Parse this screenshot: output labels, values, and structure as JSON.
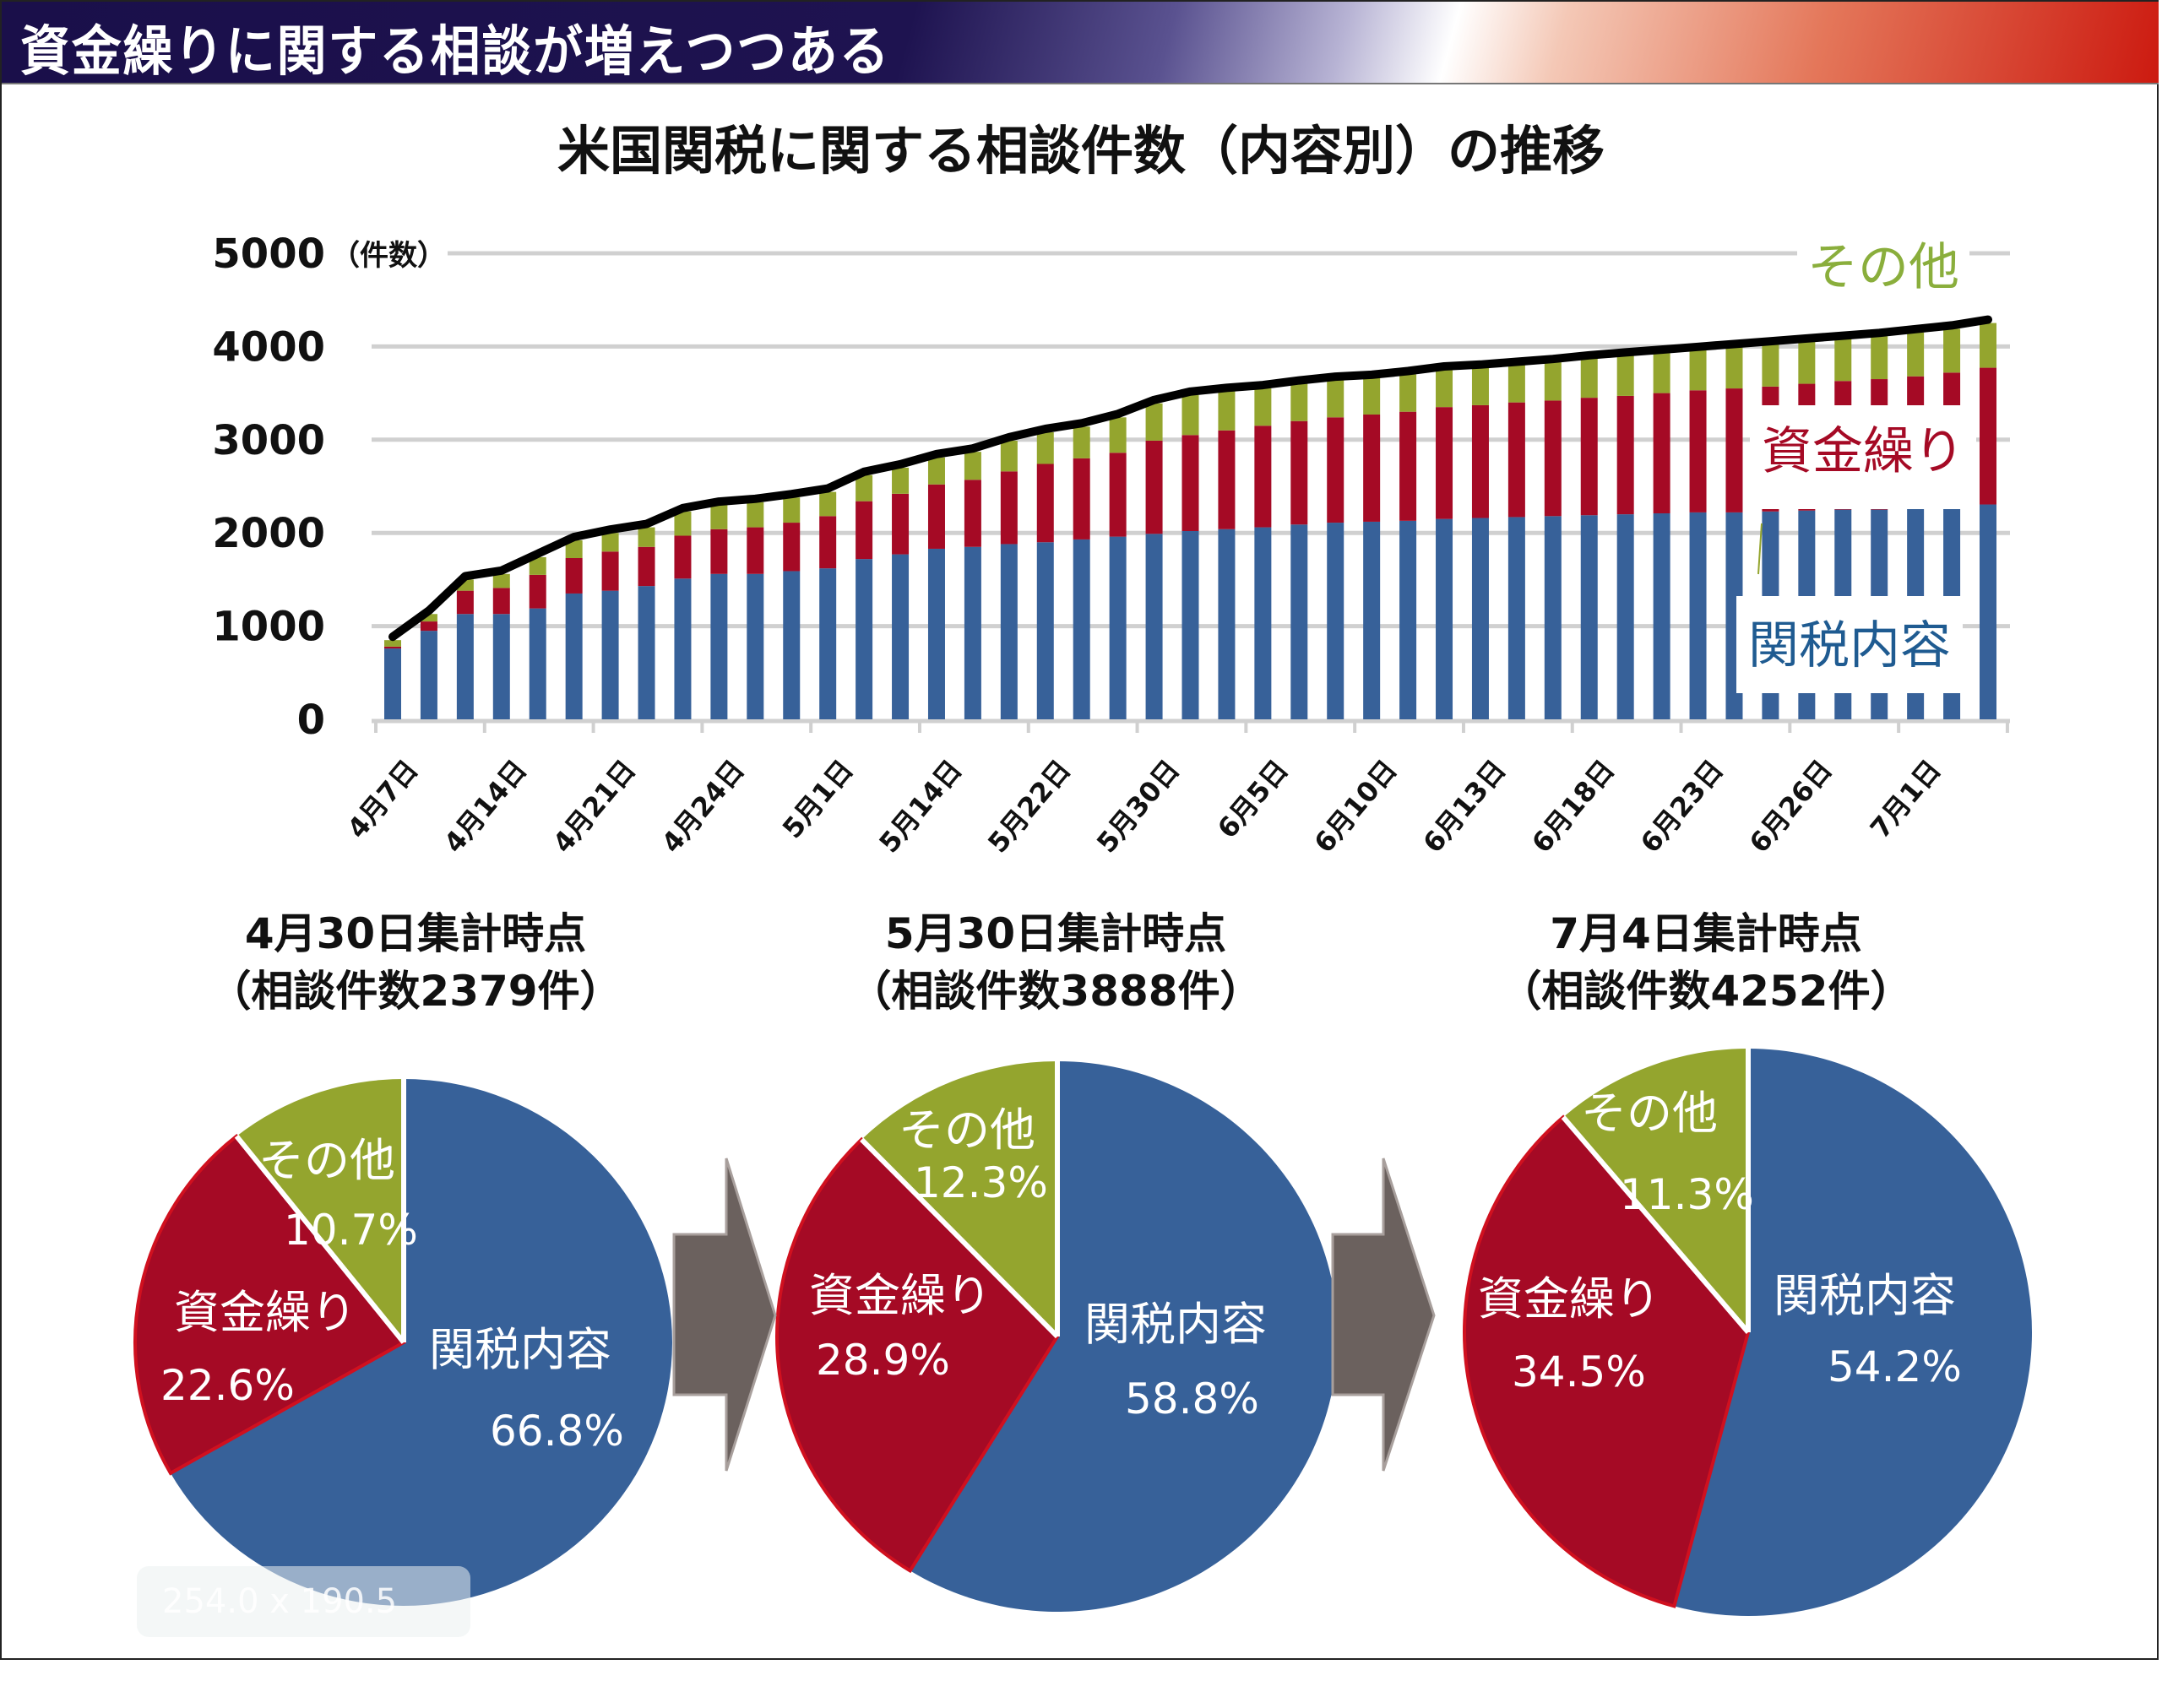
{
  "header": {
    "title": "資金繰りに関する相談が増えつつある"
  },
  "colors": {
    "tariff": "#376199",
    "funding": "#a50a25",
    "other": "#94a52e",
    "total_line": "#000000",
    "grid": "#d0d0d0",
    "arrow": "#6b615e"
  },
  "chart_data": [
    {
      "type": "bar",
      "stacked": true,
      "title": "米国関税に関する相談件数（内容別）の推移",
      "ylabel": "（件数）",
      "xlabel": "",
      "ylim": [
        0,
        5000
      ],
      "yticks": [
        "0",
        "1000",
        "2000",
        "3000",
        "4000",
        "5000"
      ],
      "grid": true,
      "tick_labels": [
        "4月7日",
        "4月14日",
        "4月21日",
        "4月24日",
        "5月1日",
        "5月14日",
        "5月22日",
        "5月30日",
        "6月5日",
        "6月10日",
        "6月13日",
        "6月18日",
        "6月23日",
        "6月26日",
        "7月1日"
      ],
      "bars_per_tick_label": 3,
      "series": [
        {
          "name": "関税内容",
          "color_key": "tariff",
          "values": [
            760,
            950,
            1130,
            1130,
            1190,
            1350,
            1380,
            1430,
            1510,
            1560,
            1560,
            1590,
            1620,
            1720,
            1770,
            1830,
            1850,
            1880,
            1900,
            1930,
            1960,
            1990,
            2020,
            2040,
            2060,
            2090,
            2110,
            2120,
            2130,
            2150,
            2160,
            2170,
            2180,
            2190,
            2200,
            2210,
            2220,
            2220,
            2230,
            2240,
            2250,
            2250,
            2260,
            2270,
            2305
          ]
        },
        {
          "name": "資金繰り",
          "color_key": "funding",
          "values": [
            20,
            100,
            250,
            280,
            360,
            380,
            420,
            420,
            460,
            480,
            500,
            520,
            560,
            620,
            650,
            690,
            720,
            780,
            840,
            870,
            900,
            1000,
            1030,
            1060,
            1090,
            1110,
            1130,
            1150,
            1170,
            1200,
            1210,
            1230,
            1240,
            1260,
            1270,
            1290,
            1310,
            1330,
            1340,
            1360,
            1380,
            1400,
            1420,
            1450,
            1467
          ]
        },
        {
          "name": "その他",
          "color_key": "other",
          "values": [
            70,
            80,
            120,
            150,
            190,
            190,
            200,
            210,
            260,
            260,
            270,
            270,
            260,
            280,
            280,
            290,
            300,
            330,
            340,
            340,
            380,
            400,
            430,
            420,
            400,
            400,
            400,
            390,
            400,
            400,
            400,
            400,
            410,
            420,
            430,
            430,
            430,
            440,
            450,
            450,
            450,
            460,
            470,
            470,
            480
          ]
        }
      ],
      "total_line": true,
      "legend": [
        {
          "label": "その他",
          "color_key": "other",
          "placement": "top-right"
        },
        {
          "label": "資金繰り",
          "color_key": "funding",
          "placement": "right"
        },
        {
          "label": "関税内容",
          "color_key": "tariff",
          "placement": "bottom-right"
        }
      ]
    },
    {
      "type": "pie",
      "title": "4月30日集計時点",
      "subtitle": "（相談件数2379件）",
      "slices": [
        {
          "label": "関税内容",
          "value": 66.8,
          "pct_label": "66.8%",
          "color_key": "tariff"
        },
        {
          "label": "資金繰り",
          "value": 22.6,
          "pct_label": "22.6%",
          "color_key": "funding"
        },
        {
          "label": "その他",
          "value": 10.7,
          "pct_label": "10.7%",
          "color_key": "other"
        }
      ]
    },
    {
      "type": "pie",
      "title": "5月30日集計時点",
      "subtitle": "（相談件数3888件）",
      "slices": [
        {
          "label": "関税内容",
          "value": 58.8,
          "pct_label": "58.8%",
          "color_key": "tariff"
        },
        {
          "label": "資金繰り",
          "value": 28.9,
          "pct_label": "28.9%",
          "color_key": "funding"
        },
        {
          "label": "その他",
          "value": 12.3,
          "pct_label": "12.3%",
          "color_key": "other"
        }
      ]
    },
    {
      "type": "pie",
      "title": "7月4日集計時点",
      "subtitle": "（相談件数4252件）",
      "slices": [
        {
          "label": "関税内容",
          "value": 54.2,
          "pct_label": "54.2%",
          "color_key": "tariff"
        },
        {
          "label": "資金繰り",
          "value": 34.5,
          "pct_label": "34.5%",
          "color_key": "funding"
        },
        {
          "label": "その他",
          "value": 11.3,
          "pct_label": "11.3%",
          "color_key": "other"
        }
      ]
    }
  ],
  "watermark": {
    "text": "254.0 x 190.5 mm"
  }
}
